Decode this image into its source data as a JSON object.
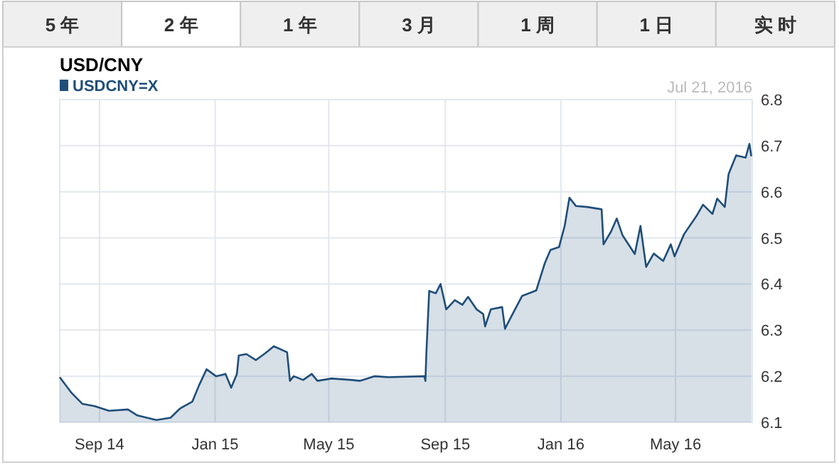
{
  "chart_data": {
    "type": "area",
    "title": "USD/CNY",
    "legend": "top left",
    "grid": true,
    "annotations": [
      "5 年",
      "2 年",
      "1 年",
      "3 月",
      "1 周",
      "1 日",
      "实 时",
      "Jul 21, 2016"
    ],
    "xlim": [
      "2014-07-21",
      "2016-07-21"
    ],
    "xticks": [
      {
        "value": "2014-09-01",
        "label": "Sep 14"
      },
      {
        "value": "2015-01-01",
        "label": "Jan 15"
      },
      {
        "value": "2015-05-01",
        "label": "May 15"
      },
      {
        "value": "2015-09-01",
        "label": "Sep 15"
      },
      {
        "value": "2016-01-01",
        "label": "Jan 16"
      },
      {
        "value": "2016-05-01",
        "label": "May 16"
      }
    ],
    "ylim": [
      6.1,
      6.8
    ],
    "yticks": [
      6.1,
      6.2,
      6.3,
      6.4,
      6.5,
      6.6,
      6.7,
      6.8
    ],
    "series": [
      {
        "name": "USDCNY=X",
        "color": "#1f4e79",
        "x": [
          "2014-07-21",
          "2014-08-02",
          "2014-08-14",
          "2014-08-27",
          "2014-09-11",
          "2014-10-01",
          "2014-10-11",
          "2014-10-31",
          "2014-11-15",
          "2014-11-25",
          "2014-12-08",
          "2014-12-15",
          "2014-12-23",
          "2015-01-02",
          "2015-01-12",
          "2015-01-18",
          "2015-01-24",
          "2015-01-26",
          "2015-02-03",
          "2015-02-13",
          "2015-02-23",
          "2015-03-04",
          "2015-03-18",
          "2015-03-21",
          "2015-03-25",
          "2015-04-04",
          "2015-04-13",
          "2015-04-19",
          "2015-05-04",
          "2015-05-25",
          "2015-06-03",
          "2015-06-18",
          "2015-07-03",
          "2015-08-10",
          "2015-08-11",
          "2015-08-12",
          "2015-08-15",
          "2015-08-22",
          "2015-08-27",
          "2015-09-02",
          "2015-09-11",
          "2015-09-19",
          "2015-09-25",
          "2015-10-04",
          "2015-10-11",
          "2015-10-13",
          "2015-10-19",
          "2015-10-31",
          "2015-11-03",
          "2015-11-08",
          "2015-11-21",
          "2015-12-06",
          "2015-12-15",
          "2015-12-21",
          "2015-12-30",
          "2016-01-05",
          "2016-01-10",
          "2016-01-17",
          "2016-01-29",
          "2016-02-13",
          "2016-02-15",
          "2016-02-23",
          "2016-02-29",
          "2016-03-06",
          "2016-03-19",
          "2016-03-25",
          "2016-03-31",
          "2016-04-08",
          "2016-04-18",
          "2016-04-26",
          "2016-04-30",
          "2016-05-10",
          "2016-05-23",
          "2016-05-30",
          "2016-06-09",
          "2016-06-14",
          "2016-06-22",
          "2016-06-26",
          "2016-07-04",
          "2016-07-14",
          "2016-07-18",
          "2016-07-20"
        ],
        "values": [
          6.198,
          6.165,
          6.14,
          6.135,
          6.125,
          6.128,
          6.115,
          6.105,
          6.11,
          6.13,
          6.145,
          6.18,
          6.215,
          6.2,
          6.205,
          6.175,
          6.205,
          6.245,
          6.248,
          6.235,
          6.25,
          6.265,
          6.252,
          6.19,
          6.2,
          6.192,
          6.205,
          6.19,
          6.195,
          6.192,
          6.19,
          6.2,
          6.198,
          6.2,
          6.19,
          6.25,
          6.385,
          6.38,
          6.4,
          6.345,
          6.365,
          6.355,
          6.372,
          6.345,
          6.335,
          6.308,
          6.345,
          6.35,
          6.303,
          6.323,
          6.374,
          6.386,
          6.445,
          6.474,
          6.48,
          6.526,
          6.587,
          6.569,
          6.567,
          6.562,
          6.486,
          6.514,
          6.542,
          6.506,
          6.465,
          6.526,
          6.437,
          6.466,
          6.45,
          6.486,
          6.46,
          6.508,
          6.547,
          6.572,
          6.552,
          6.585,
          6.567,
          6.638,
          6.679,
          6.674,
          6.704,
          6.677
        ]
      }
    ]
  }
}
